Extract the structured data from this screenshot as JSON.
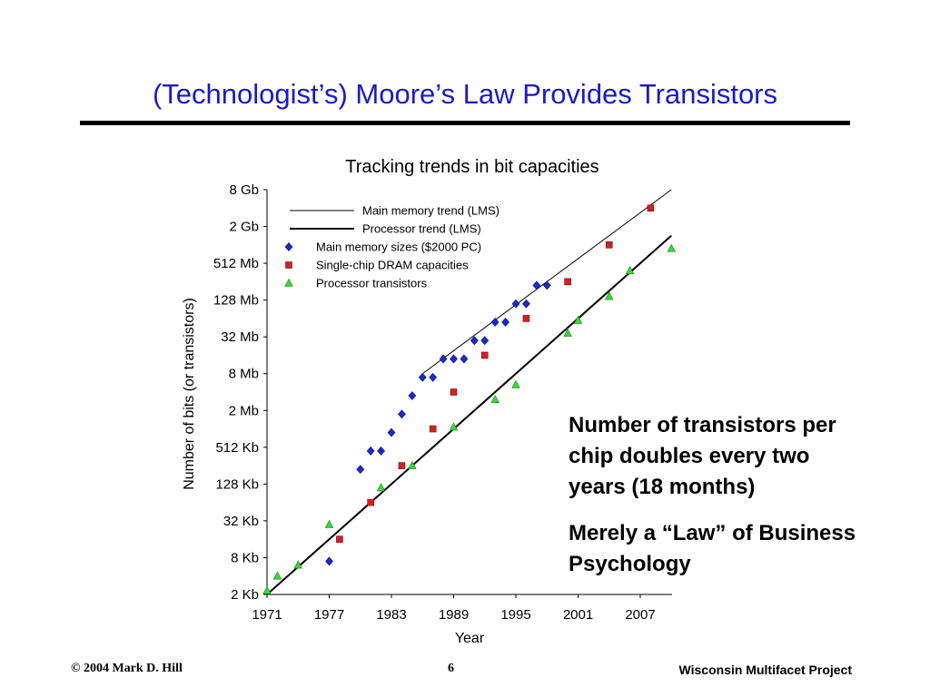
{
  "slide": {
    "title": "(Technologist’s) Moore’s Law Provides Transistors",
    "text_block_1": "Number of transistors per chip doubles every two years (18 months)",
    "text_block_2": "Merely a “Law” of Business Psychology",
    "footer_left": "© 2004 Mark D. Hill",
    "footer_center": "6",
    "footer_right": "Wisconsin Multifacet Project"
  },
  "colors": {
    "title": "#1a1ac8",
    "memory_marker": "#1a2ad0",
    "dram_marker": "#d42020",
    "processor_marker": "#33dd33"
  },
  "chart_data": {
    "type": "scatter",
    "title": "Tracking trends in bit capacities",
    "xlabel": "Year",
    "ylabel": "Number of bits (or transistors)",
    "xlim": [
      1971,
      2010
    ],
    "x_ticks": [
      1971,
      1977,
      1983,
      1989,
      1995,
      2001,
      2007
    ],
    "y_scale": "log2",
    "y_ticks": [
      {
        "value": 11,
        "label": "2 Kb"
      },
      {
        "value": 13,
        "label": "8 Kb"
      },
      {
        "value": 15,
        "label": "32 Kb"
      },
      {
        "value": 17,
        "label": "128 Kb"
      },
      {
        "value": 19,
        "label": "512 Kb"
      },
      {
        "value": 21,
        "label": "2 Mb"
      },
      {
        "value": 23,
        "label": "8 Mb"
      },
      {
        "value": 25,
        "label": "32 Mb"
      },
      {
        "value": 27,
        "label": "128 Mb"
      },
      {
        "value": 29,
        "label": "512 Mb"
      },
      {
        "value": 31,
        "label": "2 Gb"
      },
      {
        "value": 33,
        "label": "8 Gb"
      }
    ],
    "legend_position": "top-left",
    "trends": [
      {
        "name": "Main memory trend (LMS)",
        "points": [
          [
            1986,
            23
          ],
          [
            2010,
            33
          ]
        ],
        "style": "thin"
      },
      {
        "name": "Processor trend (LMS)",
        "points": [
          [
            1971,
            11
          ],
          [
            2010,
            30.5
          ]
        ],
        "style": "thick"
      }
    ],
    "series": [
      {
        "name": "Main memory sizes ($2000 PC)",
        "marker": "diamond",
        "points": [
          [
            1977,
            12.8
          ],
          [
            1980,
            17.8
          ],
          [
            1981,
            18.8
          ],
          [
            1982,
            18.8
          ],
          [
            1983,
            19.8
          ],
          [
            1984,
            20.8
          ],
          [
            1985,
            21.8
          ],
          [
            1986,
            22.8
          ],
          [
            1987,
            22.8
          ],
          [
            1988,
            23.8
          ],
          [
            1989,
            23.8
          ],
          [
            1990,
            23.8
          ],
          [
            1991,
            24.8
          ],
          [
            1992,
            24.8
          ],
          [
            1993,
            25.8
          ],
          [
            1994,
            25.8
          ],
          [
            1995,
            26.8
          ],
          [
            1996,
            26.8
          ],
          [
            1997,
            27.8
          ],
          [
            1998,
            27.8
          ]
        ]
      },
      {
        "name": "Single-chip DRAM capacities",
        "marker": "square",
        "points": [
          [
            1978,
            14
          ],
          [
            1981,
            16
          ],
          [
            1984,
            18
          ],
          [
            1987,
            20
          ],
          [
            1989,
            22
          ],
          [
            1992,
            24
          ],
          [
            1996,
            26
          ],
          [
            2000,
            28
          ],
          [
            2004,
            30
          ],
          [
            2008,
            32
          ]
        ]
      },
      {
        "name": "Processor transistors",
        "marker": "triangle",
        "points": [
          [
            1971,
            11.2
          ],
          [
            1972,
            12
          ],
          [
            1974,
            12.6
          ],
          [
            1977,
            14.8
          ],
          [
            1982,
            16.8
          ],
          [
            1985,
            18
          ],
          [
            1989,
            20.1
          ],
          [
            1993,
            21.6
          ],
          [
            1995,
            22.4
          ],
          [
            2000,
            25.2
          ],
          [
            2001,
            25.9
          ],
          [
            2004,
            27.2
          ],
          [
            2006,
            28.6
          ],
          [
            2010,
            29.8
          ]
        ]
      }
    ]
  }
}
